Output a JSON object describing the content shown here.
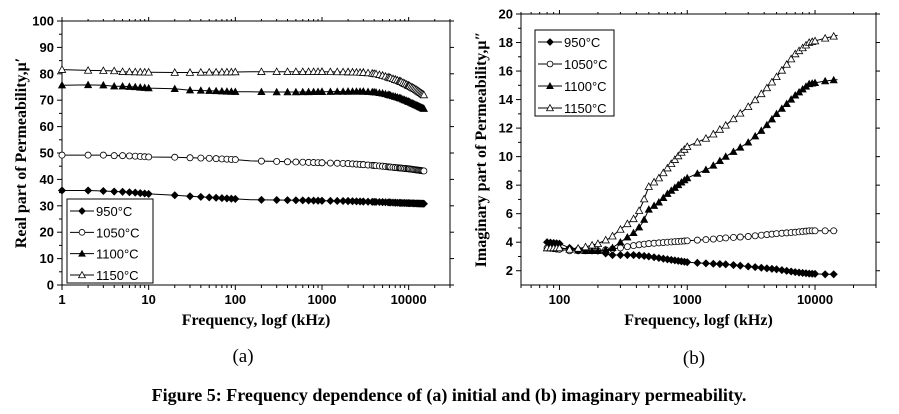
{
  "caption": "Figure 5: Frequency dependence of (a) initial and (b) imaginary permeability.",
  "chart_data": [
    {
      "id": "a",
      "panel_label": "(a)",
      "type": "scatter",
      "title": "",
      "xlabel": "Frequency, logf (kHz)",
      "ylabel": "Real part of Permeability,μ′",
      "xscale": "log",
      "xlim": [
        1,
        30000
      ],
      "ylim": [
        0,
        100
      ],
      "xticks": [
        1,
        10,
        100,
        1000,
        10000
      ],
      "xtick_labels": [
        "1",
        "10",
        "100",
        "1000",
        "10000"
      ],
      "yticks": [
        0,
        10,
        20,
        30,
        40,
        50,
        60,
        70,
        80,
        90,
        100
      ],
      "ytick_labels": [
        "0",
        "10",
        "20",
        "30",
        "40",
        "50",
        "60",
        "70",
        "80",
        "90",
        "100"
      ],
      "legend_position": "bottom-left",
      "series": [
        {
          "name": "950°C",
          "marker": "filled-diamond",
          "x": [
            1,
            2,
            3,
            4,
            5,
            7,
            10,
            20,
            30,
            50,
            100,
            150,
            300,
            500,
            1000,
            2000,
            3000,
            5000,
            8000,
            10000,
            15000
          ],
          "y": [
            35.8,
            35.8,
            35.6,
            35.4,
            35.3,
            35.0,
            34.5,
            34.0,
            33.6,
            33.2,
            32.6,
            32.3,
            32.2,
            32.1,
            31.9,
            31.8,
            31.6,
            31.4,
            31.1,
            31.0,
            30.8
          ]
        },
        {
          "name": "1050°C",
          "marker": "open-circle",
          "x": [
            1,
            2,
            3,
            4,
            5,
            7,
            10,
            20,
            30,
            50,
            100,
            150,
            300,
            500,
            1000,
            2000,
            3000,
            5000,
            8000,
            10000,
            15000
          ],
          "y": [
            49.2,
            49.2,
            49.2,
            49.0,
            49.0,
            48.8,
            48.5,
            48.4,
            48.2,
            48.0,
            47.5,
            47.0,
            46.8,
            46.6,
            46.3,
            46.0,
            45.6,
            45.0,
            44.3,
            44.0,
            43.2
          ]
        },
        {
          "name": "1100°C",
          "marker": "filled-triangle",
          "x": [
            1,
            2,
            3,
            4,
            5,
            7,
            10,
            20,
            30,
            50,
            100,
            150,
            300,
            500,
            1000,
            2000,
            3000,
            4000,
            5000,
            6000,
            8000,
            10000,
            12000,
            15000
          ],
          "y": [
            75.7,
            75.8,
            75.7,
            75.3,
            75.3,
            75.0,
            74.6,
            74.3,
            73.8,
            73.6,
            73.2,
            73.2,
            73.1,
            73.1,
            73.2,
            73.3,
            73.3,
            73.1,
            72.6,
            72.0,
            70.8,
            69.5,
            68.3,
            66.8
          ]
        },
        {
          "name": "1150°C",
          "marker": "open-triangle",
          "x": [
            1,
            2,
            3,
            4,
            5,
            7,
            10,
            20,
            30,
            50,
            100,
            150,
            300,
            500,
            1000,
            2000,
            3000,
            4000,
            5000,
            6000,
            8000,
            10000,
            12000,
            15000
          ],
          "y": [
            81.6,
            81.3,
            81.2,
            81.1,
            80.8,
            80.7,
            80.6,
            80.5,
            80.5,
            80.6,
            80.7,
            80.8,
            80.8,
            80.8,
            80.8,
            80.7,
            80.5,
            80.1,
            79.4,
            78.6,
            77.2,
            75.6,
            74.2,
            72.0
          ]
        }
      ]
    },
    {
      "id": "b",
      "panel_label": "(b)",
      "type": "scatter",
      "title": "",
      "xlabel": "Frequency, logf (kHz)",
      "ylabel": "Imaginary part of Permeability,μ″",
      "xscale": "log",
      "xlim": [
        50,
        30000
      ],
      "ylim": [
        1,
        20
      ],
      "xticks": [
        100,
        1000,
        10000
      ],
      "xtick_labels": [
        "100",
        "1000",
        "10000"
      ],
      "yticks": [
        2,
        4,
        6,
        8,
        10,
        12,
        14,
        16,
        18,
        20
      ],
      "ytick_labels": [
        "2",
        "4",
        "6",
        "8",
        "10",
        "12",
        "14",
        "16",
        "18",
        "20"
      ],
      "legend_position": "top-left",
      "series": [
        {
          "name": "950°C",
          "marker": "filled-diamond",
          "x": [
            80,
            100,
            120,
            150,
            200,
            250,
            300,
            400,
            500,
            700,
            1000,
            1500,
            2000,
            3000,
            5000,
            7000,
            9000,
            12000,
            15000
          ],
          "y": [
            4.0,
            3.9,
            3.6,
            3.5,
            3.4,
            3.1,
            3.1,
            3.1,
            3.0,
            2.8,
            2.6,
            2.5,
            2.45,
            2.3,
            2.1,
            1.9,
            1.8,
            1.75,
            1.75
          ]
        },
        {
          "name": "1050°C",
          "marker": "open-circle",
          "x": [
            80,
            100,
            120,
            150,
            200,
            250,
            300,
            400,
            500,
            700,
            1000,
            1500,
            2000,
            3000,
            5000,
            7000,
            9000,
            12000,
            15000
          ],
          "y": [
            3.6,
            3.5,
            3.4,
            3.4,
            3.4,
            3.5,
            3.6,
            3.8,
            3.9,
            4.0,
            4.1,
            4.2,
            4.3,
            4.4,
            4.6,
            4.7,
            4.8,
            4.8,
            4.8
          ]
        },
        {
          "name": "1100°C",
          "marker": "filled-triangle",
          "x": [
            80,
            100,
            120,
            150,
            200,
            250,
            300,
            400,
            450,
            500,
            600,
            700,
            900,
            1000,
            1500,
            2000,
            3000,
            4000,
            5000,
            7000,
            9000,
            12000,
            15000
          ],
          "y": [
            3.6,
            3.6,
            3.5,
            3.4,
            3.4,
            3.5,
            4.0,
            4.8,
            5.4,
            6.3,
            6.8,
            7.4,
            8.2,
            8.5,
            9.2,
            10.0,
            11.0,
            12.0,
            13.0,
            14.3,
            15.1,
            15.3,
            15.4
          ]
        },
        {
          "name": "1150°C",
          "marker": "open-triangle",
          "x": [
            80,
            100,
            120,
            150,
            200,
            250,
            300,
            400,
            450,
            500,
            600,
            700,
            900,
            1000,
            1500,
            2000,
            3000,
            4000,
            5000,
            7000,
            9000,
            12000,
            15000
          ],
          "y": [
            3.6,
            3.6,
            3.5,
            3.6,
            3.9,
            4.3,
            4.9,
            5.8,
            6.8,
            7.9,
            8.5,
            9.2,
            10.3,
            10.7,
            11.4,
            12.2,
            13.5,
            14.6,
            15.6,
            17.2,
            18.0,
            18.3,
            18.5
          ]
        }
      ]
    }
  ]
}
